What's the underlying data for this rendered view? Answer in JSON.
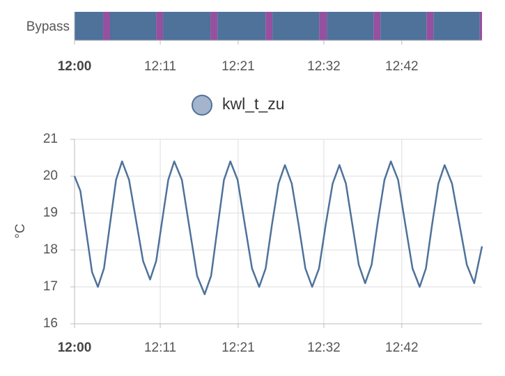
{
  "chart_data": [
    {
      "type": "timeline",
      "categories": [
        "Bypass"
      ],
      "segments": [
        {
          "start": 0,
          "end": 3.67,
          "color": "#4e7299"
        },
        {
          "start": 3.67,
          "end": 4.56,
          "color": "#9650a0"
        },
        {
          "start": 4.56,
          "end": 10.47,
          "color": "#4e7299"
        },
        {
          "start": 10.47,
          "end": 11.36,
          "color": "#9650a0"
        },
        {
          "start": 11.36,
          "end": 17.44,
          "color": "#4e7299"
        },
        {
          "start": 17.44,
          "end": 18.34,
          "color": "#9650a0"
        },
        {
          "start": 18.34,
          "end": 24.51,
          "color": "#4e7299"
        },
        {
          "start": 24.51,
          "end": 25.4,
          "color": "#9650a0"
        },
        {
          "start": 25.4,
          "end": 31.4,
          "color": "#4e7299"
        },
        {
          "start": 31.4,
          "end": 32.4,
          "color": "#9650a0"
        },
        {
          "start": 32.4,
          "end": 38.37,
          "color": "#4e7299"
        },
        {
          "start": 38.37,
          "end": 39.27,
          "color": "#9650a0"
        },
        {
          "start": 39.27,
          "end": 45.17,
          "color": "#4e7299"
        },
        {
          "start": 45.17,
          "end": 46.06,
          "color": "#9650a0"
        },
        {
          "start": 46.06,
          "end": 52.0,
          "color": "#4e7299"
        },
        {
          "start": 52.0,
          "end": 52.3,
          "color": "#9650a0"
        }
      ],
      "xlim": [
        0,
        52.3
      ],
      "xticks": [
        {
          "value": 0,
          "label": "12:00"
        },
        {
          "value": 11,
          "label": "12:11"
        },
        {
          "value": 21,
          "label": "12:21"
        },
        {
          "value": 32,
          "label": "12:32"
        },
        {
          "value": 42,
          "label": "12:42"
        }
      ]
    },
    {
      "type": "line",
      "ylabel": "°C",
      "x": [
        0,
        0.75,
        1.5,
        2.25,
        3.0,
        3.78,
        4.55,
        5.33,
        6.1,
        7.0,
        7.9,
        8.8,
        9.7,
        10.48,
        11.25,
        12.03,
        12.8,
        13.78,
        14.75,
        15.73,
        16.7,
        17.53,
        18.35,
        19.18,
        20.0,
        20.93,
        21.85,
        22.78,
        23.7,
        24.53,
        25.35,
        26.18,
        27.0,
        27.88,
        28.75,
        29.63,
        30.5,
        31.38,
        32.25,
        33.13,
        34.0,
        34.83,
        35.65,
        36.48,
        37.3,
        38.13,
        38.95,
        39.78,
        40.6,
        41.53,
        42.45,
        43.38,
        44.3,
        45.1,
        45.9,
        46.7,
        47.5,
        48.45,
        49.4,
        50.35,
        51.3,
        52.3
      ],
      "series": [
        {
          "name": "kwl_t_zu",
          "color": "#4e7299",
          "values": [
            20.0,
            19.6,
            18.5,
            17.4,
            17.0,
            17.5,
            18.7,
            19.9,
            20.4,
            19.9,
            18.8,
            17.7,
            17.2,
            17.7,
            18.8,
            19.9,
            20.4,
            19.9,
            18.6,
            17.3,
            16.8,
            17.3,
            18.6,
            19.9,
            20.4,
            19.9,
            18.7,
            17.5,
            17.0,
            17.5,
            18.7,
            19.8,
            20.3,
            19.8,
            18.7,
            17.5,
            17.0,
            17.5,
            18.7,
            19.8,
            20.3,
            19.8,
            18.7,
            17.6,
            17.1,
            17.6,
            18.8,
            19.9,
            20.4,
            19.9,
            18.7,
            17.5,
            17.0,
            17.5,
            18.7,
            19.8,
            20.3,
            19.8,
            18.7,
            17.6,
            17.1,
            18.1
          ]
        }
      ],
      "xlim": [
        0,
        52.3
      ],
      "xticks": [
        {
          "value": 0,
          "label": "12:00"
        },
        {
          "value": 11,
          "label": "12:11"
        },
        {
          "value": 21,
          "label": "12:21"
        },
        {
          "value": 32,
          "label": "12:32"
        },
        {
          "value": 42,
          "label": "12:42"
        }
      ],
      "ylim": [
        16,
        21
      ],
      "yticks": [
        16,
        17,
        18,
        19,
        20,
        21
      ],
      "grid": true
    }
  ]
}
